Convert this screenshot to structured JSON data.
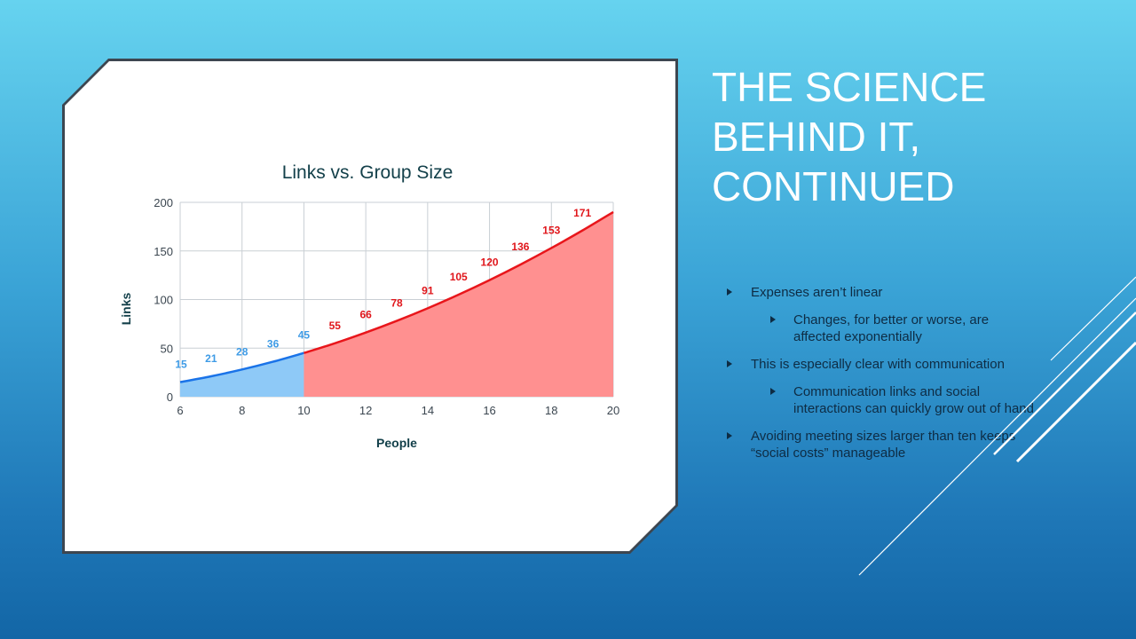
{
  "slide": {
    "title_lines": [
      "THE SCIENCE",
      "BEHIND IT,",
      "CONTINUED"
    ],
    "bullets": [
      {
        "level": 1,
        "text": "Expenses aren’t linear"
      },
      {
        "level": 2,
        "text": "Changes, for better or worse, are affected exponentially"
      },
      {
        "level": 1,
        "text": "This is especially  clear with communication"
      },
      {
        "level": 2,
        "text": "Communication links and social interactions can quickly grow out of hand"
      },
      {
        "level": 1,
        "text": "Avoiding meeting sizes larger than ten keeps “social costs” manageable"
      }
    ]
  },
  "colors": {
    "blue_line": "#1a73e8",
    "blue_fill": "#8ec9f7",
    "red_line": "#e8161b",
    "red_fill": "#ff9090",
    "blue_label": "#3e9be6",
    "red_label": "#e0161b",
    "title": "#13404a"
  },
  "chart_data": {
    "type": "area",
    "title": "Links vs. Group Size",
    "xlabel": "People",
    "ylabel": "Links",
    "xlim": [
      6,
      20
    ],
    "ylim": [
      0,
      200
    ],
    "x_ticks": [
      6,
      8,
      10,
      12,
      14,
      16,
      18,
      20
    ],
    "y_ticks": [
      0,
      50,
      100,
      150,
      200
    ],
    "grid": true,
    "series": [
      {
        "x": [
          6,
          7,
          8,
          9,
          10
        ],
        "values": [
          15,
          21,
          28,
          36,
          45
        ]
      },
      {
        "x": [
          10,
          11,
          12,
          13,
          14,
          15,
          16,
          17,
          18,
          19,
          20
        ],
        "values": [
          45,
          55,
          66,
          78,
          91,
          105,
          120,
          136,
          153,
          171,
          190
        ]
      }
    ],
    "data_labels": [
      {
        "x": 6,
        "y": 15,
        "text": "15",
        "series": 0
      },
      {
        "x": 7,
        "y": 21,
        "text": "21",
        "series": 0
      },
      {
        "x": 8,
        "y": 28,
        "text": "28",
        "series": 0
      },
      {
        "x": 9,
        "y": 36,
        "text": "36",
        "series": 0
      },
      {
        "x": 10,
        "y": 45,
        "text": "45",
        "series": 0
      },
      {
        "x": 11,
        "y": 55,
        "text": "55",
        "series": 1
      },
      {
        "x": 12,
        "y": 66,
        "text": "66",
        "series": 1
      },
      {
        "x": 13,
        "y": 78,
        "text": "78",
        "series": 1
      },
      {
        "x": 14,
        "y": 91,
        "text": "91",
        "series": 1
      },
      {
        "x": 15,
        "y": 105,
        "text": "105",
        "series": 1
      },
      {
        "x": 16,
        "y": 120,
        "text": "120",
        "series": 1
      },
      {
        "x": 17,
        "y": 136,
        "text": "136",
        "series": 1
      },
      {
        "x": 18,
        "y": 153,
        "text": "153",
        "series": 1
      },
      {
        "x": 19,
        "y": 171,
        "text": "171",
        "series": 1
      }
    ]
  }
}
